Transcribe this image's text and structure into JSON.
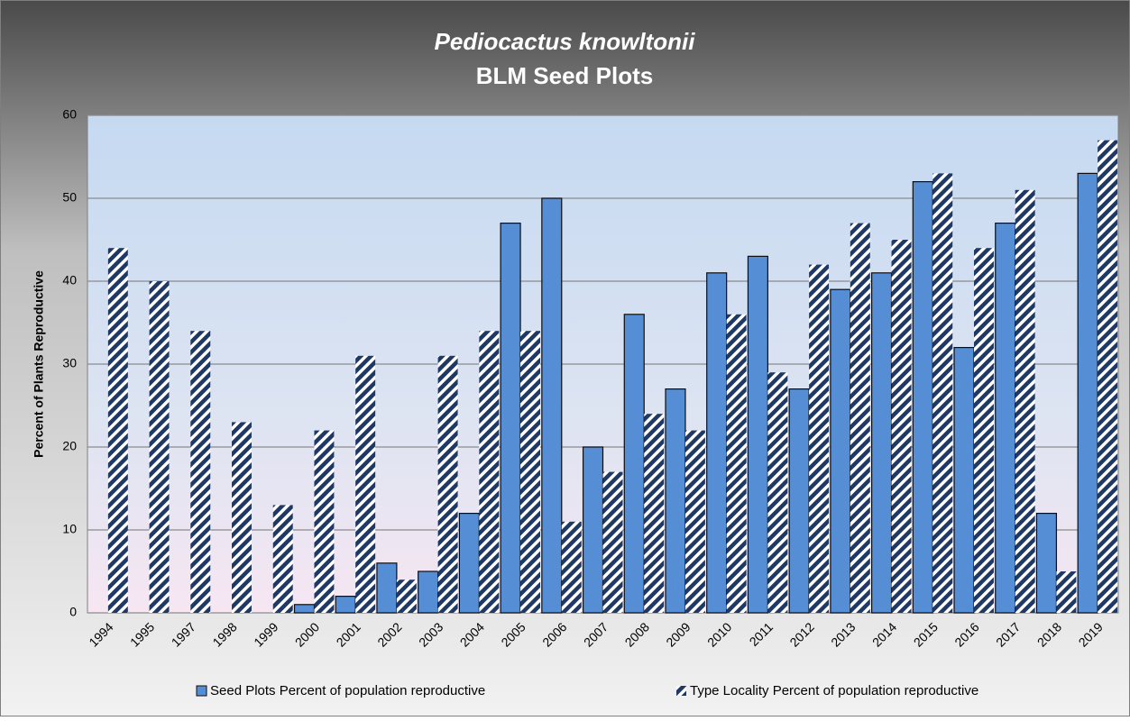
{
  "chart_data": {
    "type": "bar",
    "title": "Pediocactus knowltonii",
    "subtitle": "BLM Seed Plots",
    "y_label": "Percent of Plants Reproductive",
    "categories": [
      "1994",
      "1995",
      "1997",
      "1998",
      "1999",
      "2000",
      "2001",
      "2002",
      "2003",
      "2004",
      "2005",
      "2006",
      "2007",
      "2008",
      "2009",
      "2010",
      "2011",
      "2012",
      "2013",
      "2014",
      "2015",
      "2016",
      "2017",
      "2018",
      "2019"
    ],
    "series": [
      {
        "name": "Seed Plots Percent of population reproductive",
        "color": "#558ed5",
        "values": [
          null,
          null,
          null,
          null,
          null,
          1,
          2,
          6,
          5,
          12,
          47,
          50,
          20,
          36,
          27,
          41,
          43,
          27,
          39,
          41,
          52,
          32,
          47,
          12,
          53
        ]
      },
      {
        "name": "Type Locality Percent of population reproductive",
        "color": "#1f3864",
        "values": [
          44,
          40,
          34,
          23,
          13,
          22,
          31,
          4,
          31,
          34,
          34,
          11,
          17,
          24,
          22,
          36,
          29,
          42,
          47,
          45,
          53,
          44,
          51,
          5,
          57
        ]
      }
    ],
    "ylim": [
      0,
      60
    ],
    "yticks": [
      0,
      10,
      20,
      30,
      40,
      50,
      60
    ],
    "grid": true,
    "legend": "bottom"
  }
}
